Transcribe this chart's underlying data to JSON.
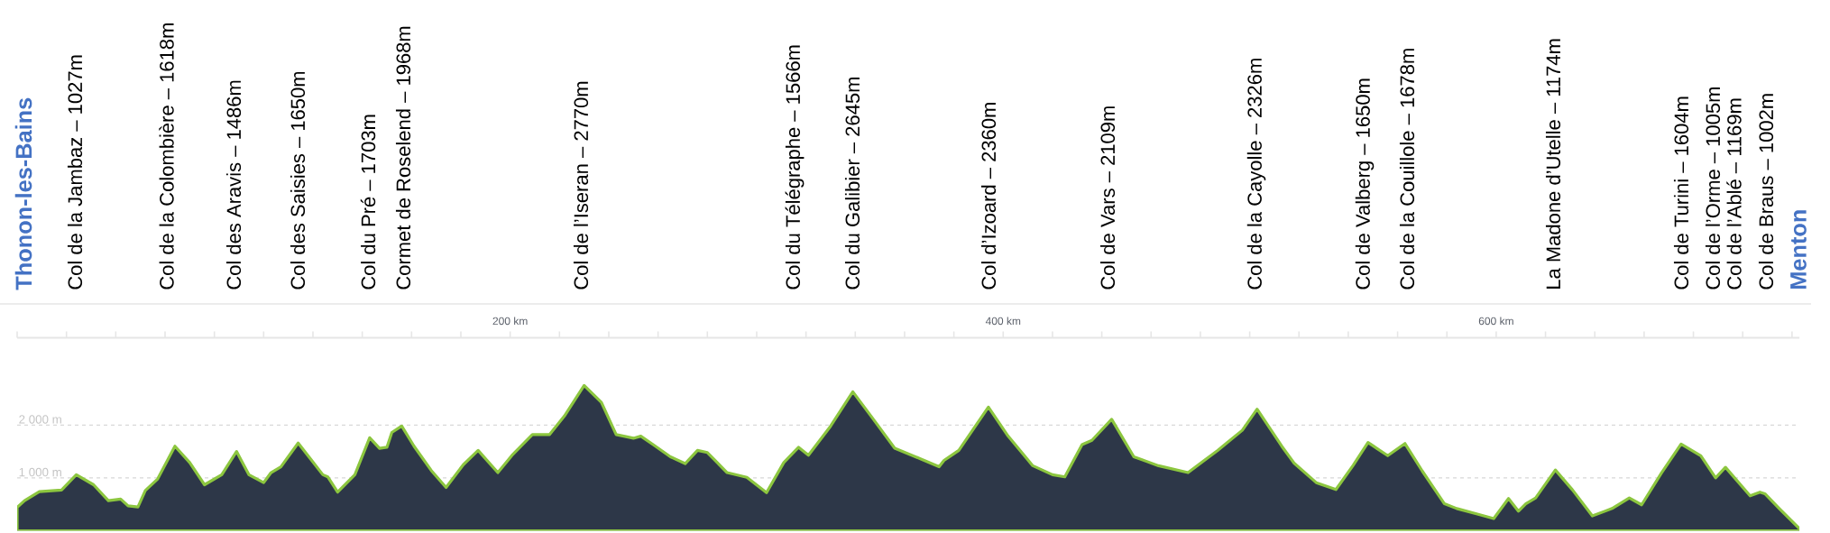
{
  "chart_data": {
    "type": "area",
    "x": [
      0,
      3,
      9,
      18,
      24,
      31,
      37,
      42,
      45,
      49,
      52,
      57,
      64,
      70,
      76,
      83,
      89,
      94,
      100,
      103,
      107,
      114,
      124,
      126,
      130,
      137,
      143,
      147,
      150,
      152,
      156,
      161,
      168,
      174,
      181,
      187,
      195,
      201,
      209,
      216,
      222,
      230,
      237,
      243,
      250,
      253,
      258,
      265,
      271,
      276,
      280,
      288,
      296,
      304,
      311,
      317,
      321,
      330,
      339,
      347,
      356,
      366,
      374,
      376,
      382,
      394,
      402,
      412,
      420,
      425,
      432,
      436,
      444,
      453,
      463,
      475,
      487,
      491,
      497,
      503,
      513,
      518,
      527,
      535,
      542,
      548,
      556,
      563,
      570,
      579,
      584,
      592,
      599,
      605,
      609,
      612,
      616,
      624,
      631,
      639,
      647,
      654,
      659,
      667,
      675,
      683,
      689,
      693,
      703,
      707,
      709,
      715,
      723
    ],
    "series": [
      {
        "color": "#2d3748",
        "values": [
          440,
          570,
          740,
          770,
          1060,
          870,
          570,
          600,
          470,
          450,
          760,
          980,
          1600,
          1290,
          870,
          1060,
          1500,
          1060,
          910,
          1100,
          1210,
          1660,
          1060,
          1020,
          730,
          1060,
          1760,
          1560,
          1580,
          1860,
          1980,
          1600,
          1140,
          820,
          1250,
          1520,
          1100,
          1440,
          1820,
          1820,
          2170,
          2750,
          2430,
          1820,
          1750,
          1790,
          1630,
          1400,
          1270,
          1520,
          1480,
          1100,
          1010,
          720,
          1290,
          1580,
          1430,
          1980,
          2630,
          2130,
          1560,
          1370,
          1210,
          1330,
          1520,
          2340,
          1790,
          1230,
          1060,
          1020,
          1630,
          1710,
          2110,
          1400,
          1230,
          1100,
          1520,
          1670,
          1900,
          2300,
          1600,
          1280,
          910,
          780,
          1240,
          1670,
          1420,
          1650,
          1130,
          510,
          420,
          320,
          230,
          610,
          370,
          510,
          620,
          1150,
          770,
          280,
          420,
          620,
          490,
          1090,
          1640,
          1420,
          1000,
          1200,
          660,
          730,
          700,
          410,
          40
        ]
      }
    ],
    "xlim": [
      0,
      723
    ],
    "ylim": [
      0,
      3650
    ],
    "xticks": [
      {
        "value": 0,
        "label": null
      },
      {
        "value": 20,
        "label": null
      },
      {
        "value": 40,
        "label": null
      },
      {
        "value": 60,
        "label": null
      },
      {
        "value": 80,
        "label": null
      },
      {
        "value": 100,
        "label": null
      },
      {
        "value": 120,
        "label": null
      },
      {
        "value": 140,
        "label": null
      },
      {
        "value": 160,
        "label": null
      },
      {
        "value": 180,
        "label": null
      },
      {
        "value": 200,
        "label": "200 km"
      },
      {
        "value": 220,
        "label": null
      },
      {
        "value": 240,
        "label": null
      },
      {
        "value": 260,
        "label": null
      },
      {
        "value": 280,
        "label": null
      },
      {
        "value": 300,
        "label": null
      },
      {
        "value": 320,
        "label": null
      },
      {
        "value": 340,
        "label": null
      },
      {
        "value": 360,
        "label": null
      },
      {
        "value": 380,
        "label": null
      },
      {
        "value": 400,
        "label": "400 km"
      },
      {
        "value": 420,
        "label": null
      },
      {
        "value": 440,
        "label": null
      },
      {
        "value": 460,
        "label": null
      },
      {
        "value": 480,
        "label": null
      },
      {
        "value": 500,
        "label": null
      },
      {
        "value": 520,
        "label": null
      },
      {
        "value": 540,
        "label": null
      },
      {
        "value": 560,
        "label": null
      },
      {
        "value": 580,
        "label": null
      },
      {
        "value": 600,
        "label": "600 km"
      },
      {
        "value": 620,
        "label": null
      },
      {
        "value": 640,
        "label": null
      },
      {
        "value": 660,
        "label": null
      },
      {
        "value": 680,
        "label": null
      },
      {
        "value": 700,
        "label": null
      },
      {
        "value": 720,
        "label": null
      }
    ],
    "yticks": [
      {
        "value": 1000,
        "label": "1 000 m"
      },
      {
        "value": 2000,
        "label": "2 000 m"
      }
    ],
    "grid": "y",
    "annotations": [
      "Thonon-les-Bains",
      "Col de la Jambaz – 1027m",
      "Col de la Colombière – 1618m",
      "Col des Aravis – 1486m",
      "Col des Saisies – 1650m",
      "Col du Pré – 1703m",
      "Cormet de Roselend – 1968m",
      "Col de l’Iseran – 2770m",
      "Col du Télégraphe – 1566m",
      "Col du Galibier – 2645m",
      "Col d’Izoard – 2360m",
      "Col de Vars – 2109m",
      "Col de la Cayolle – 2326m",
      "Col de Valberg – 1650m",
      "Col de la Couillole – 1678m",
      "La Madone d’Utelle – 1174m",
      "Col de Turini – 1604m",
      "Col de l’Orme – 1005m",
      "Col de l’Ablé – 1169m",
      "Col de Braus – 1002m",
      "Menton"
    ]
  }
}
